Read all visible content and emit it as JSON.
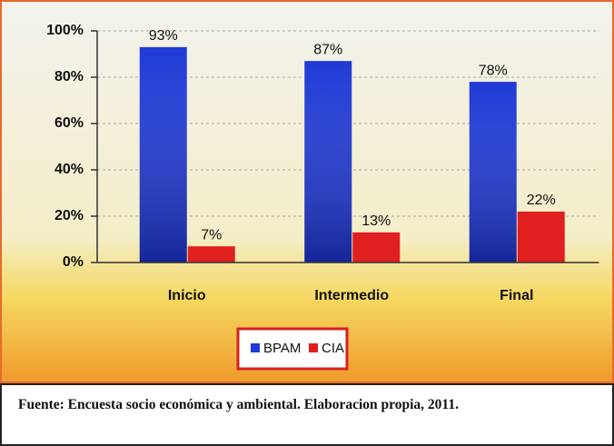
{
  "chart_data": {
    "type": "bar",
    "categories": [
      "Inicio",
      "Intermedio",
      "Final"
    ],
    "series": [
      {
        "name": "BPAM",
        "color": "#1f3ad6",
        "values": [
          93,
          87,
          78
        ],
        "value_labels": [
          "93%",
          "87%",
          "78%"
        ]
      },
      {
        "name": "CIA",
        "color": "#e01f1f",
        "values": [
          7,
          13,
          22
        ],
        "value_labels": [
          "7%",
          "13%",
          "22%"
        ]
      }
    ],
    "ylim": [
      0,
      100
    ],
    "yticks": [
      {
        "value": 0,
        "label": "0%"
      },
      {
        "value": 20,
        "label": "20%"
      },
      {
        "value": 40,
        "label": "40%"
      },
      {
        "value": 60,
        "label": "60%"
      },
      {
        "value": 80,
        "label": "80%"
      },
      {
        "value": 100,
        "label": "100%"
      }
    ],
    "grid": true,
    "legend": "bottom",
    "source": "Fuente: Encuesta socio económica y ambiental. Elaboracion propia, 2011."
  }
}
